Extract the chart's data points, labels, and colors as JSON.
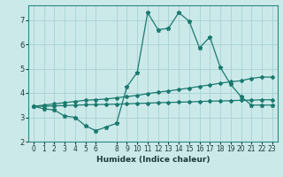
{
  "bg_color": "#cce9ea",
  "grid_color": "#aad4d6",
  "line_color": "#1a7a6e",
  "xlabel": "Humidex (Indice chaleur)",
  "xlim": [
    -0.5,
    23.5
  ],
  "ylim": [
    2,
    7.6
  ],
  "xticks": [
    0,
    1,
    2,
    3,
    4,
    5,
    6,
    8,
    9,
    10,
    11,
    12,
    13,
    14,
    15,
    16,
    17,
    18,
    19,
    20,
    21,
    22,
    23
  ],
  "yticks": [
    2,
    3,
    4,
    5,
    6,
    7
  ],
  "line1_x": [
    0,
    1,
    2,
    3,
    4,
    5,
    6,
    7,
    8,
    9,
    10,
    11,
    12,
    13,
    14,
    15,
    16,
    17,
    18,
    19,
    20,
    21,
    22,
    23
  ],
  "line1_y": [
    3.45,
    3.35,
    3.3,
    3.05,
    3.0,
    2.65,
    2.45,
    2.6,
    2.75,
    4.25,
    4.85,
    7.3,
    6.6,
    6.65,
    7.3,
    6.95,
    5.85,
    6.3,
    5.05,
    4.35,
    3.85,
    3.5,
    3.5,
    3.5
  ],
  "line2_x": [
    0,
    1,
    2,
    3,
    4,
    5,
    6,
    7,
    8,
    9,
    10,
    11,
    12,
    13,
    14,
    15,
    16,
    17,
    18,
    19,
    20,
    21,
    22,
    23
  ],
  "line2_y": [
    3.45,
    3.5,
    3.55,
    3.6,
    3.65,
    3.7,
    3.72,
    3.75,
    3.8,
    3.85,
    3.9,
    3.97,
    4.03,
    4.08,
    4.14,
    4.2,
    4.27,
    4.33,
    4.4,
    4.46,
    4.5,
    4.6,
    4.65,
    4.65
  ],
  "line3_x": [
    0,
    1,
    2,
    3,
    4,
    5,
    6,
    7,
    8,
    9,
    10,
    11,
    12,
    13,
    14,
    15,
    16,
    17,
    18,
    19,
    20,
    21,
    22,
    23
  ],
  "line3_y": [
    3.45,
    3.45,
    3.47,
    3.48,
    3.5,
    3.51,
    3.52,
    3.53,
    3.54,
    3.55,
    3.57,
    3.58,
    3.6,
    3.61,
    3.62,
    3.63,
    3.65,
    3.66,
    3.67,
    3.68,
    3.7,
    3.7,
    3.72,
    3.72
  ]
}
